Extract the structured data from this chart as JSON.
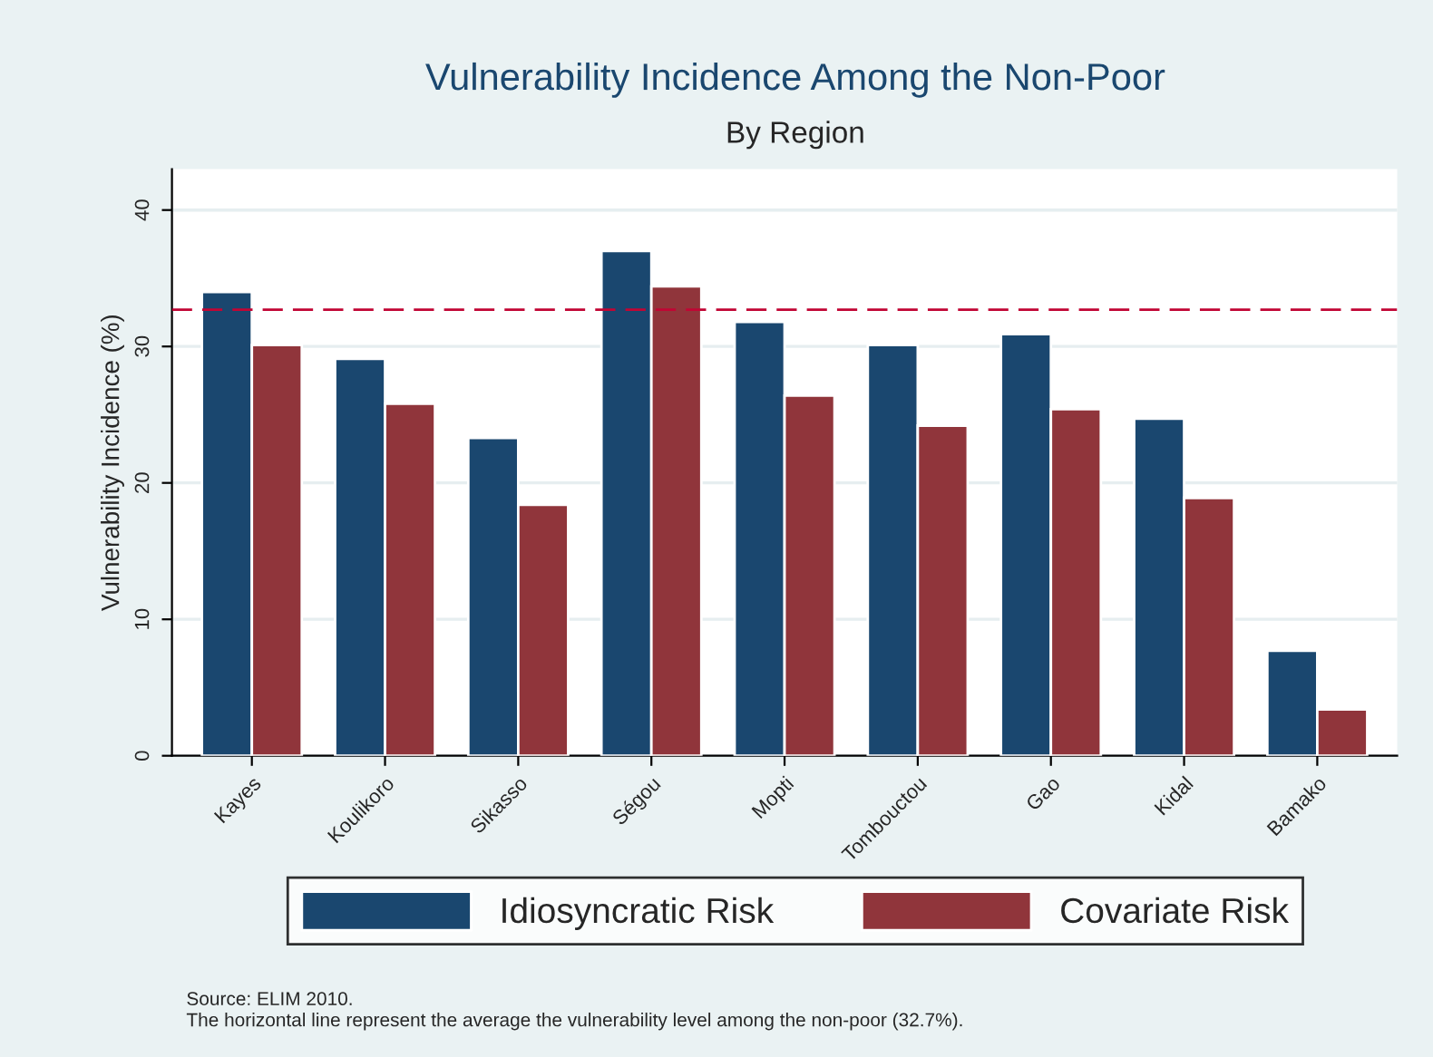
{
  "chart_data": {
    "type": "bar",
    "title": "Vulnerability Incidence Among the Non-Poor",
    "subtitle": "By Region",
    "ylabel": "Vulnerability Incidence (%)",
    "categories": [
      "Kayes",
      "Koulikoro",
      "Sikasso",
      "Ségou",
      "Mopti",
      "Tombouctou",
      "Gao",
      "Kidal",
      "Bamako"
    ],
    "series": [
      {
        "name": "Idiosyncratic Risk",
        "color": "#1a476f",
        "values": [
          34.0,
          29.1,
          23.3,
          37.0,
          31.8,
          30.1,
          30.9,
          24.7,
          7.7
        ]
      },
      {
        "name": "Covariate Risk",
        "color": "#90353b",
        "values": [
          30.1,
          25.8,
          18.4,
          34.4,
          26.4,
          24.2,
          25.4,
          18.9,
          3.4
        ]
      }
    ],
    "ylim": [
      0,
      43
    ],
    "yticks": [
      0,
      10,
      20,
      30,
      40
    ],
    "grid": "y",
    "legend": "bottom",
    "ref_lines": [
      {
        "axis": "y",
        "value": 32.7,
        "color": "#c10534",
        "line_style": "dashed"
      }
    ],
    "annotations": [
      "Source: ELIM 2010.",
      "The horizontal line represent the average the vulnerability level among the non-poor (32.7%)."
    ]
  }
}
